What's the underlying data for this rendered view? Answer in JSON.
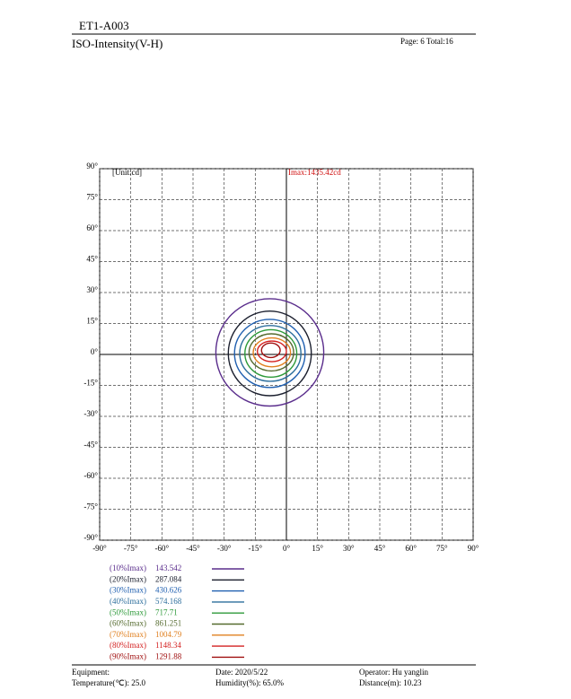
{
  "header": {
    "title": "ET1-A003",
    "subtitle": "ISO-Intensity(V-H)",
    "page": "Page: 6  Total:16"
  },
  "chart_data": {
    "type": "contour",
    "unit_label": "[Unit:cd]",
    "annotation": "Imax:1435.42cd",
    "xlim": [
      -90,
      90
    ],
    "ylim": [
      -90,
      90
    ],
    "xticks": [
      {
        "value": -90,
        "label": "-90°"
      },
      {
        "value": -75,
        "label": "-75°"
      },
      {
        "value": -60,
        "label": "-60°"
      },
      {
        "value": -45,
        "label": "-45°"
      },
      {
        "value": -30,
        "label": "-30°"
      },
      {
        "value": -15,
        "label": "-15°"
      },
      {
        "value": 0,
        "label": "0°"
      },
      {
        "value": 15,
        "label": "15°"
      },
      {
        "value": 30,
        "label": "30°"
      },
      {
        "value": 45,
        "label": "45°"
      },
      {
        "value": 60,
        "label": "60°"
      },
      {
        "value": 75,
        "label": "75°"
      },
      {
        "value": 90,
        "label": "90°"
      }
    ],
    "yticks": [
      {
        "value": 90,
        "label": "90°"
      },
      {
        "value": 75,
        "label": "75°"
      },
      {
        "value": 60,
        "label": "60°"
      },
      {
        "value": 45,
        "label": "45°"
      },
      {
        "value": 30,
        "label": "30°"
      },
      {
        "value": 15,
        "label": "15°"
      },
      {
        "value": 0,
        "label": "0°"
      },
      {
        "value": -15,
        "label": "-15°"
      },
      {
        "value": -30,
        "label": "-30°"
      },
      {
        "value": -45,
        "label": "-45°"
      },
      {
        "value": -60,
        "label": "-60°"
      },
      {
        "value": -75,
        "label": "-75°"
      },
      {
        "value": -90,
        "label": "-90°"
      }
    ],
    "grid": true,
    "series": [
      {
        "name": "(10%Imax)",
        "value": 143.542,
        "color": "#5a2d8c",
        "x_extent": [
          -34,
          18
        ],
        "y_extent": [
          -25,
          27
        ]
      },
      {
        "name": "(20%Imax)",
        "value": 287.084,
        "color": "#1b1f2e",
        "x_extent": [
          -28,
          12
        ],
        "y_extent": [
          -20,
          21
        ]
      },
      {
        "name": "(30%Imax)",
        "value": 430.626,
        "color": "#1f5fb0",
        "x_extent": [
          -25,
          9
        ],
        "y_extent": [
          -16,
          17
        ]
      },
      {
        "name": "(40%Imax)",
        "value": 574.168,
        "color": "#2c6e9c",
        "x_extent": [
          -22.5,
          7
        ],
        "y_extent": [
          -13,
          14
        ]
      },
      {
        "name": "(50%Imax)",
        "value": 717.71,
        "color": "#2e9a3a",
        "x_extent": [
          -20,
          5
        ],
        "y_extent": [
          -11,
          12
        ]
      },
      {
        "name": "(60%Imax)",
        "value": 861.251,
        "color": "#556b2f",
        "x_extent": [
          -18,
          3.5
        ],
        "y_extent": [
          -8,
          10
        ]
      },
      {
        "name": "(70%Imax)",
        "value": 1004.79,
        "color": "#e08020",
        "x_extent": [
          -16,
          2
        ],
        "y_extent": [
          -6,
          8
        ]
      },
      {
        "name": "(80%Imax)",
        "value": 1148.34,
        "color": "#d42020",
        "x_extent": [
          -14,
          0
        ],
        "y_extent": [
          -3.5,
          6.5
        ]
      },
      {
        "name": "(90%Imax)",
        "value": 1291.88,
        "color": "#a01010",
        "x_extent": [
          -12,
          -3
        ],
        "y_extent": [
          -1.5,
          5.5
        ]
      }
    ]
  },
  "footer": {
    "equipment": "Equipment:",
    "temperature": "Temperature(℃): 25.0",
    "date": "Date: 2020/5/22",
    "humidity": "Humidity(%): 65.0%",
    "operator": "Operator: Hu yanglin",
    "distance": "Distance(m): 10.23"
  }
}
